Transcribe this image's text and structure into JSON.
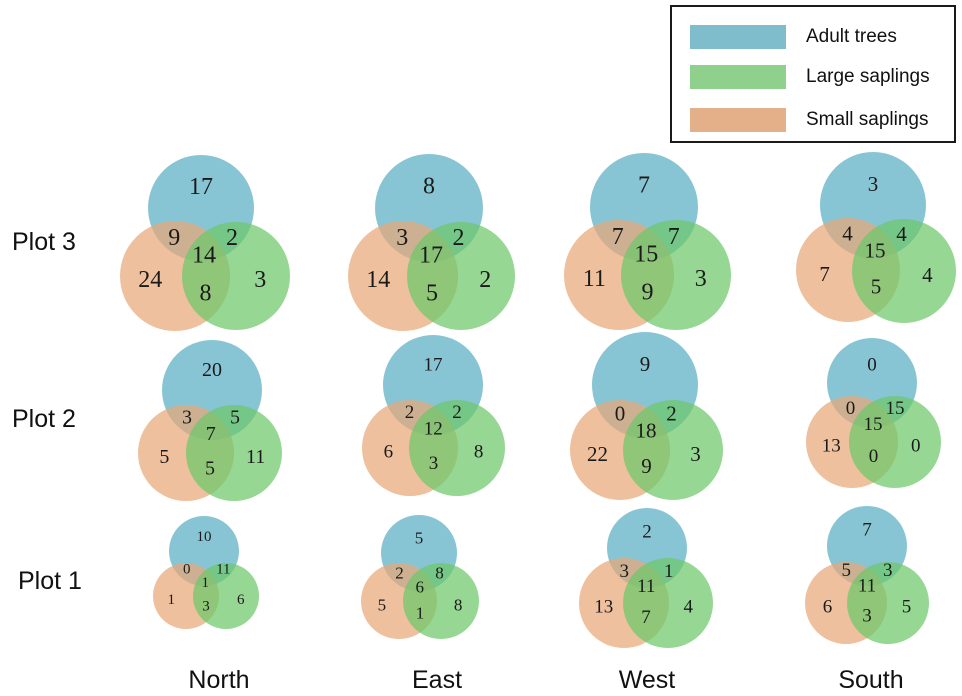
{
  "legend": {
    "items": [
      {
        "label": "Adult trees",
        "color": "#5aaec4"
      },
      {
        "label": "Large saplings",
        "color": "#6cc86a"
      },
      {
        "label": "Small saplings",
        "color": "#e8a878"
      }
    ]
  },
  "rows": [
    "Plot 3",
    "Plot 2",
    "Plot 1"
  ],
  "columns": [
    "North",
    "East",
    "West",
    "South"
  ],
  "venns": [
    {
      "plot": "Plot 3",
      "site": "North",
      "adult": "17",
      "adult_small": "9",
      "adult_large": "2",
      "all": "14",
      "small": "24",
      "small_large": "8",
      "large": "3"
    },
    {
      "plot": "Plot 3",
      "site": "East",
      "adult": "8",
      "adult_small": "3",
      "adult_large": "2",
      "all": "17",
      "small": "14",
      "small_large": "5",
      "large": "2"
    },
    {
      "plot": "Plot 3",
      "site": "West",
      "adult": "7",
      "adult_small": "7",
      "adult_large": "7",
      "all": "15",
      "small": "11",
      "small_large": "9",
      "large": "3"
    },
    {
      "plot": "Plot 3",
      "site": "South",
      "adult": "3",
      "adult_small": "4",
      "adult_large": "4",
      "all": "15",
      "small": "7",
      "small_large": "5",
      "large": "4"
    },
    {
      "plot": "Plot 2",
      "site": "North",
      "adult": "20",
      "adult_small": "3",
      "adult_large": "5",
      "all": "7",
      "small": "5",
      "small_large": "5",
      "large": "11"
    },
    {
      "plot": "Plot 2",
      "site": "East",
      "adult": "17",
      "adult_small": "2",
      "adult_large": "2",
      "all": "12",
      "small": "6",
      "small_large": "3",
      "large": "8"
    },
    {
      "plot": "Plot 2",
      "site": "West",
      "adult": "9",
      "adult_small": "0",
      "adult_large": "2",
      "all": "18",
      "small": "22",
      "small_large": "9",
      "large": "3"
    },
    {
      "plot": "Plot 2",
      "site": "South",
      "adult": "0",
      "adult_small": "0",
      "adult_large": "15",
      "all": "15",
      "small": "13",
      "small_large": "0",
      "large": "0"
    },
    {
      "plot": "Plot 1",
      "site": "North",
      "adult": "10",
      "adult_small": "0",
      "adult_large": "11",
      "all": "1",
      "small": "1",
      "small_large": "3",
      "large": "6"
    },
    {
      "plot": "Plot 1",
      "site": "East",
      "adult": "5",
      "adult_small": "2",
      "adult_large": "8",
      "all": "6",
      "small": "5",
      "small_large": "1",
      "large": "8"
    },
    {
      "plot": "Plot 1",
      "site": "West",
      "adult": "2",
      "adult_small": "3",
      "adult_large": "1",
      "all": "11",
      "small": "13",
      "small_large": "7",
      "large": "4"
    },
    {
      "plot": "Plot 1",
      "site": "South",
      "adult": "7",
      "adult_small": "5",
      "adult_large": "3",
      "all": "11",
      "small": "6",
      "small_large": "3",
      "large": "5"
    }
  ]
}
